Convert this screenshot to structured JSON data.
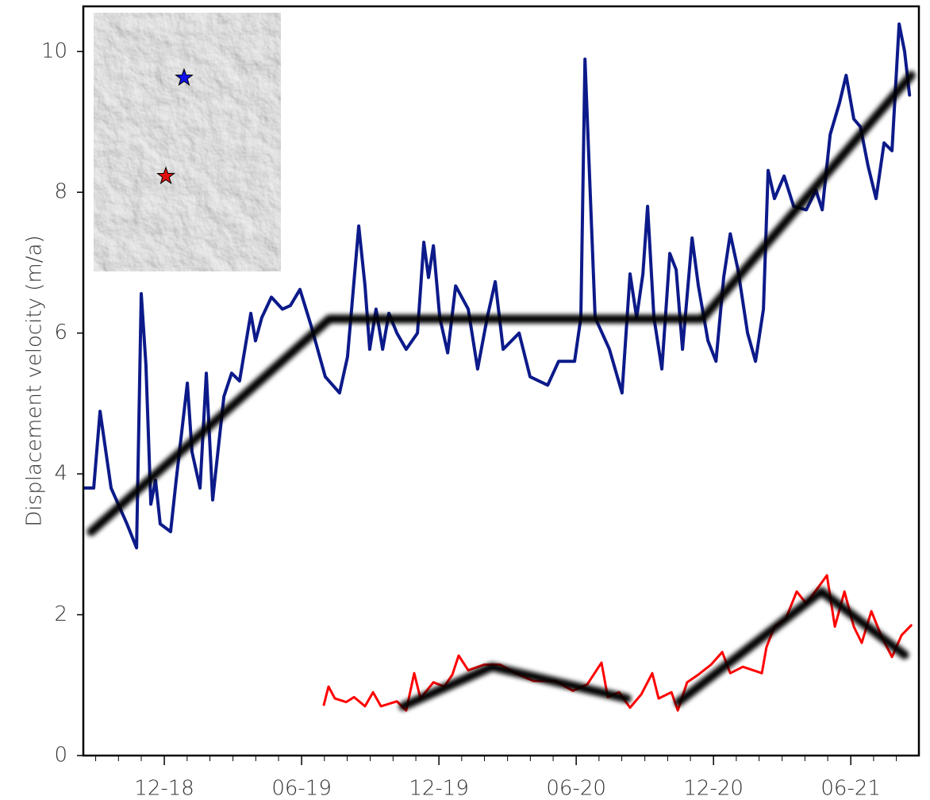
{
  "chart_data": {
    "type": "line",
    "ylabel": "Displacement velocity (m/a)",
    "xlim": [
      2018.622,
      2021.665
    ],
    "ylim": [
      0,
      10.64
    ],
    "yticks": [
      0,
      2,
      4,
      6,
      8,
      10
    ],
    "xticks": [
      {
        "value": 2018.917,
        "label": "12-18"
      },
      {
        "value": 2019.417,
        "label": "06-19"
      },
      {
        "value": 2019.917,
        "label": "12-19"
      },
      {
        "value": 2020.417,
        "label": "06-20"
      },
      {
        "value": 2020.917,
        "label": "12-20"
      },
      {
        "value": 2021.417,
        "label": "06-21"
      }
    ],
    "xminorticks": [
      2018.667,
      2018.75,
      2018.833,
      2019.0,
      2019.083,
      2019.167,
      2019.25,
      2019.333,
      2019.5,
      2019.583,
      2019.667,
      2019.75,
      2019.833,
      2020.0,
      2020.083,
      2020.167,
      2020.25,
      2020.333,
      2020.5,
      2020.583,
      2020.667,
      2020.75,
      2020.833,
      2021.0,
      2021.083,
      2021.167,
      2021.25,
      2021.333,
      2021.5,
      2021.583
    ],
    "grid": false,
    "series": [
      {
        "color": "#0c1a8a",
        "blur": false,
        "x": [
          2018.622,
          2018.66,
          2018.683,
          2018.723,
          2018.781,
          2018.816,
          2018.833,
          2018.85,
          2018.868,
          2018.885,
          2018.902,
          2018.94,
          2018.96,
          2019.001,
          2019.018,
          2019.047,
          2019.07,
          2019.093,
          2019.134,
          2019.162,
          2019.191,
          2019.232,
          2019.249,
          2019.272,
          2019.307,
          2019.347,
          2019.376,
          2019.411,
          2019.451,
          2019.503,
          2019.555,
          2019.584,
          2019.625,
          2019.648,
          2019.665,
          2019.688,
          2019.712,
          2019.735,
          2019.764,
          2019.798,
          2019.839,
          2019.862,
          2019.879,
          2019.897,
          2019.92,
          2019.949,
          2019.978,
          2020.024,
          2020.058,
          2020.093,
          2020.122,
          2020.151,
          2020.209,
          2020.249,
          2020.313,
          2020.353,
          2020.411,
          2020.434,
          2020.449,
          2020.463,
          2020.486,
          2020.538,
          2020.584,
          2020.613,
          2020.637,
          2020.66,
          2020.677,
          2020.7,
          2020.729,
          2020.758,
          2020.781,
          2020.804,
          2020.839,
          2020.862,
          2020.897,
          2020.926,
          2020.954,
          2020.978,
          2021.006,
          2021.041,
          2021.07,
          2021.099,
          2021.116,
          2021.139,
          2021.174,
          2021.209,
          2021.255,
          2021.29,
          2021.313,
          2021.342,
          2021.376,
          2021.4,
          2021.428,
          2021.452,
          2021.48,
          2021.509,
          2021.538,
          2021.567,
          2021.593,
          2021.613,
          2021.631
        ],
        "values": [
          3.8,
          3.8,
          4.89,
          3.8,
          3.29,
          2.95,
          6.56,
          5.55,
          3.57,
          3.91,
          3.29,
          3.18,
          3.91,
          5.29,
          4.31,
          3.8,
          5.43,
          3.63,
          5.1,
          5.43,
          5.32,
          6.28,
          5.89,
          6.22,
          6.51,
          6.34,
          6.39,
          6.62,
          6.11,
          5.38,
          5.15,
          5.66,
          7.52,
          6.67,
          5.77,
          6.34,
          5.77,
          6.28,
          6.0,
          5.77,
          6.0,
          7.29,
          6.79,
          7.24,
          6.22,
          5.72,
          6.67,
          6.34,
          5.49,
          6.22,
          6.73,
          5.77,
          6.0,
          5.38,
          5.26,
          5.6,
          5.6,
          6.22,
          9.89,
          8.48,
          6.22,
          5.77,
          5.15,
          6.84,
          6.22,
          6.84,
          7.8,
          6.22,
          5.49,
          7.13,
          6.9,
          5.77,
          7.35,
          6.67,
          5.89,
          5.6,
          6.79,
          7.41,
          6.9,
          6.0,
          5.6,
          6.34,
          8.31,
          7.91,
          8.23,
          7.8,
          7.75,
          8.03,
          7.75,
          8.82,
          9.27,
          9.66,
          9.04,
          8.93,
          8.37,
          7.91,
          8.7,
          8.59,
          10.39,
          10.0,
          9.38
        ]
      },
      {
        "color": "#000000",
        "blur": true,
        "x": [
          2018.651,
          2019.518,
          2020.876,
          2021.637
        ],
        "values": [
          3.18,
          6.2,
          6.2,
          9.66
        ]
      },
      {
        "color": "#ff0000",
        "blur": false,
        "x": [
          2019.498,
          2019.515,
          2019.538,
          2019.579,
          2019.608,
          2019.648,
          2019.677,
          2019.706,
          2019.764,
          2019.798,
          2019.827,
          2019.85,
          2019.897,
          2019.937,
          2019.966,
          2019.989,
          2020.024,
          2020.082,
          2020.139,
          2020.197,
          2020.261,
          2020.342,
          2020.405,
          2020.457,
          2020.509,
          2020.532,
          2020.573,
          2020.613,
          2020.654,
          2020.694,
          2020.717,
          2020.764,
          2020.787,
          2020.821,
          2020.862,
          2020.908,
          2020.949,
          2020.978,
          2021.024,
          2021.093,
          2021.11,
          2021.139,
          2021.18,
          2021.22,
          2021.255,
          2021.295,
          2021.33,
          2021.359,
          2021.394,
          2021.428,
          2021.457,
          2021.492,
          2021.527,
          2021.567,
          2021.602,
          2021.637
        ],
        "values": [
          0.72,
          0.98,
          0.81,
          0.76,
          0.83,
          0.7,
          0.9,
          0.7,
          0.77,
          0.64,
          1.17,
          0.81,
          1.04,
          0.98,
          1.15,
          1.42,
          1.21,
          1.29,
          1.29,
          1.17,
          1.06,
          1.06,
          0.92,
          1.01,
          1.32,
          0.83,
          0.9,
          0.68,
          0.87,
          1.17,
          0.81,
          0.9,
          0.64,
          1.04,
          1.15,
          1.29,
          1.47,
          1.17,
          1.26,
          1.17,
          1.54,
          1.83,
          1.94,
          2.33,
          2.16,
          2.37,
          2.56,
          1.83,
          2.33,
          1.83,
          1.6,
          2.05,
          1.71,
          1.4,
          1.71,
          1.85
        ]
      },
      {
        "color": "#000000",
        "blur": true,
        "x": [
          2019.787,
          2020.11,
          2020.602,
          null,
          2020.79,
          2021.31,
          2021.613
        ],
        "values": [
          0.7,
          1.26,
          0.81,
          null,
          0.76,
          2.33,
          1.43
        ]
      }
    ]
  }
}
